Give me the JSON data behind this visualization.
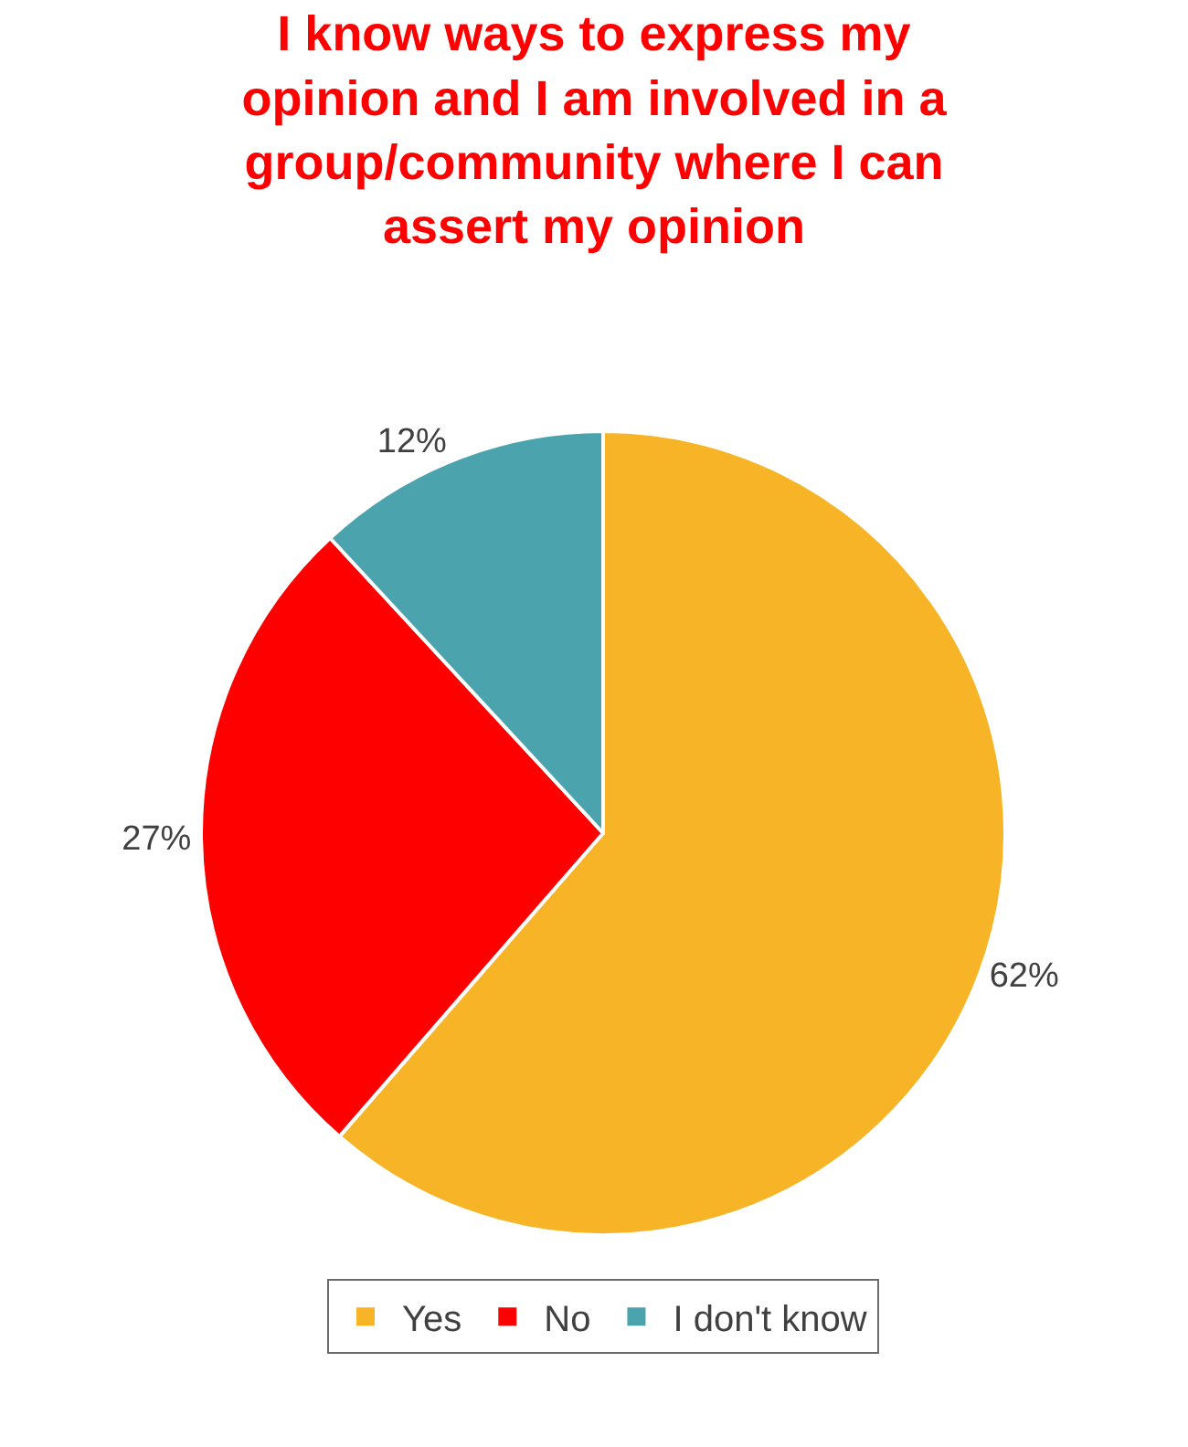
{
  "chart_data": {
    "type": "pie",
    "title": "I know ways to express my opinion and I am involved in a group/community where I can assert my opinion",
    "categories": [
      "Yes",
      "No",
      "I don't know"
    ],
    "values": [
      62,
      27,
      12
    ],
    "colors": [
      "#f6b426",
      "#ff0000",
      "#4ba3ad"
    ],
    "value_labels": [
      "62%",
      "27%",
      "12%"
    ],
    "legend": "bottom"
  }
}
